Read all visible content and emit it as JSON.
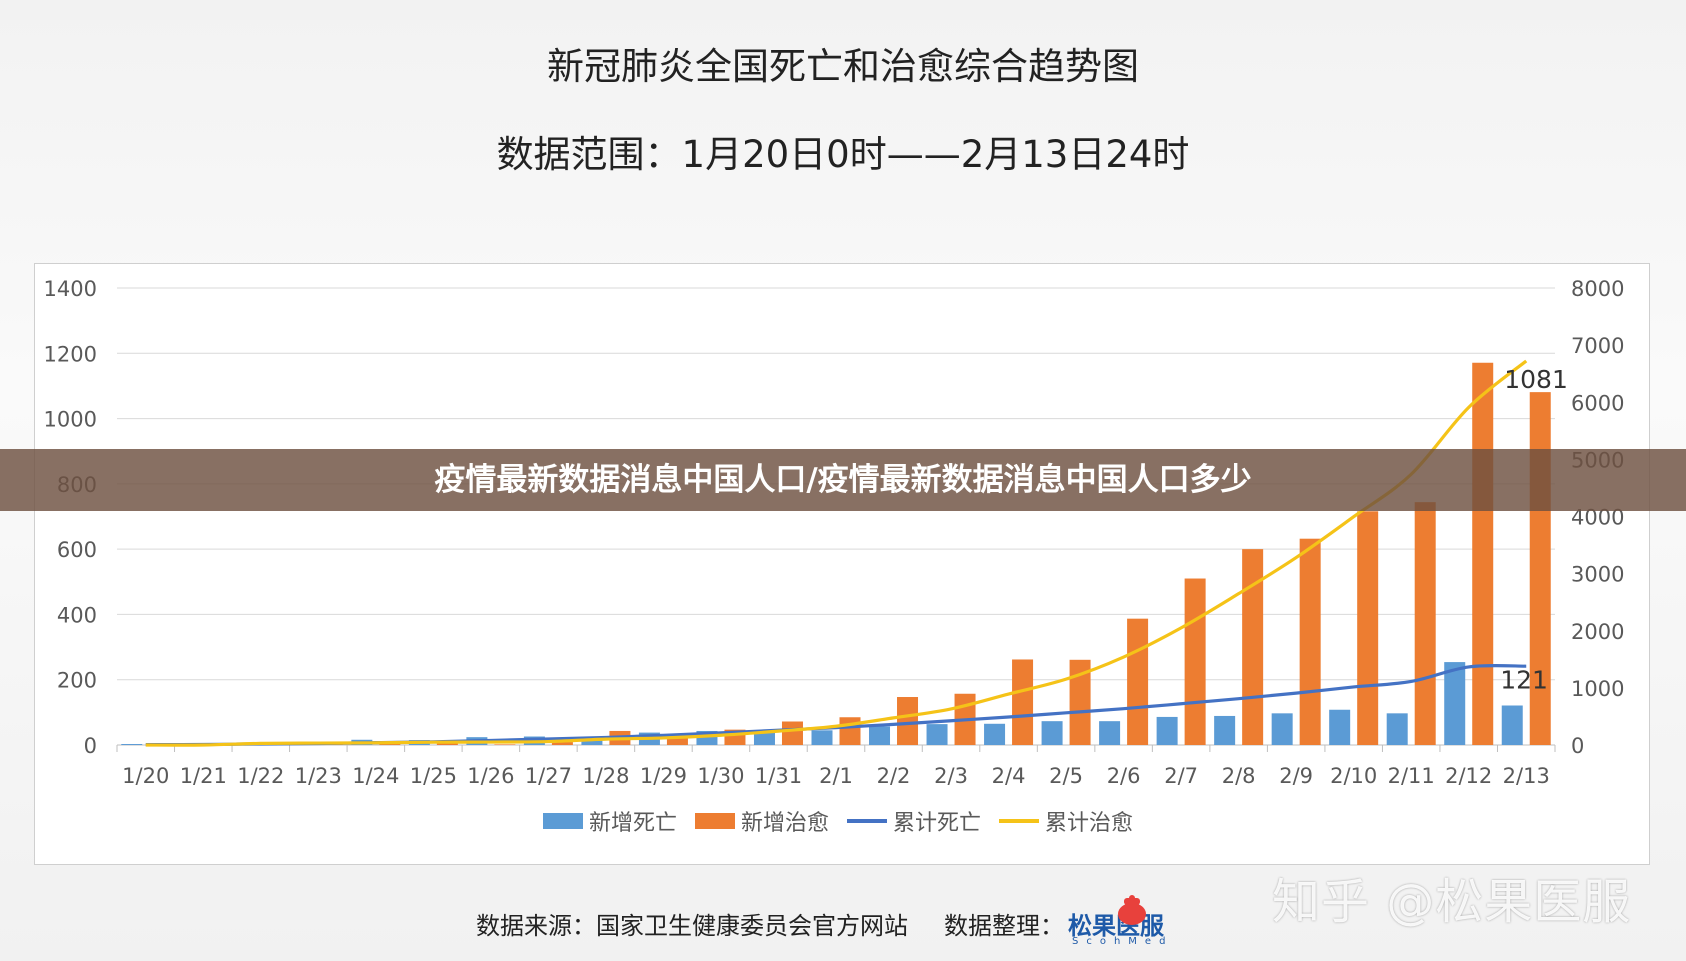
{
  "header": {
    "title": "新冠肺炎全国死亡和治愈综合趋势图",
    "subtitle": "数据范围：1月20日0时——2月13日24时"
  },
  "banner": {
    "text": "疫情最新数据消息中国人口/疫情最新数据消息中国人口多少"
  },
  "footer": {
    "source": "数据来源：国家卫生健康委员会官方网站",
    "organizer": "数据整理：",
    "logo_name": "松果医服",
    "logo_sub": "ScohMed"
  },
  "watermark": "知乎 @松果医服",
  "colors": {
    "new_deaths": "#5b9bd5",
    "new_cured": "#ed7d31",
    "cum_deaths": "#4472c4",
    "cum_cured": "#f5c318"
  },
  "chart_data": {
    "type": "bar",
    "categories": [
      "1/20",
      "1/21",
      "1/22",
      "1/23",
      "1/24",
      "1/25",
      "1/26",
      "1/27",
      "1/28",
      "1/29",
      "1/30",
      "1/31",
      "2/1",
      "2/2",
      "2/3",
      "2/4",
      "2/5",
      "2/6",
      "2/7",
      "2/8",
      "2/9",
      "2/10",
      "2/11",
      "2/12",
      "2/13"
    ],
    "y_left": {
      "ticks": [
        0,
        200,
        400,
        600,
        800,
        1000,
        1200,
        1400
      ],
      "lim": [
        0,
        1400
      ]
    },
    "y_right": {
      "ticks": [
        0,
        1000,
        2000,
        3000,
        4000,
        5000,
        6000,
        7000,
        8000
      ],
      "lim": [
        0,
        8000
      ]
    },
    "series": [
      {
        "name": "新增死亡",
        "type": "bar",
        "axis": "left",
        "values": [
          3,
          3,
          8,
          8,
          16,
          15,
          24,
          26,
          26,
          38,
          43,
          46,
          45,
          57,
          64,
          65,
          73,
          73,
          86,
          89,
          97,
          108,
          97,
          254,
          121
        ]
      },
      {
        "name": "新增治愈",
        "type": "bar",
        "axis": "left",
        "values": [
          0,
          0,
          4,
          6,
          3,
          11,
          2,
          9,
          43,
          21,
          47,
          72,
          85,
          147,
          157,
          262,
          261,
          387,
          510,
          600,
          632,
          716,
          744,
          1171,
          1081
        ]
      },
      {
        "name": "累计死亡",
        "type": "line",
        "axis": "right",
        "values": [
          6,
          9,
          17,
          25,
          41,
          56,
          80,
          106,
          132,
          170,
          213,
          259,
          304,
          361,
          425,
          490,
          563,
          636,
          722,
          811,
          908,
          1016,
          1113,
          1367,
          1380
        ]
      },
      {
        "name": "累计治愈",
        "type": "line",
        "axis": "right",
        "values": [
          0,
          0,
          28,
          34,
          38,
          49,
          51,
          60,
          103,
          124,
          171,
          243,
          328,
          475,
          632,
          892,
          1153,
          1540,
          2050,
          2649,
          3281,
          3996,
          4740,
          5911,
          6723
        ]
      }
    ],
    "annotations": [
      {
        "series": "新增治愈",
        "category": "2/13",
        "text": "1081"
      },
      {
        "series": "新增死亡",
        "category": "2/13",
        "text": "121"
      }
    ],
    "legend": "bottom",
    "grid": true
  }
}
